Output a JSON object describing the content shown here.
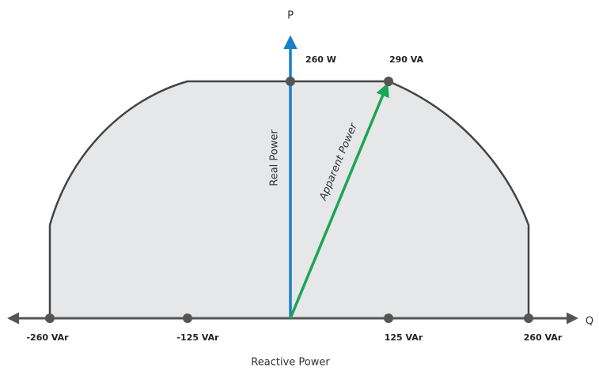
{
  "axes": {
    "vertical": "P",
    "horizontal": "Q",
    "horizontal_title": "Reactive Power"
  },
  "vectors": {
    "real": "Real Power",
    "apparent": "Apparent Power"
  },
  "points": {
    "real_max": "260 W",
    "apparent_max": "290 VA",
    "q_min": "-260 VAr",
    "q_neg": "-125 VAr",
    "q_pos": "125 VAr",
    "q_max": "260 VAr"
  }
}
